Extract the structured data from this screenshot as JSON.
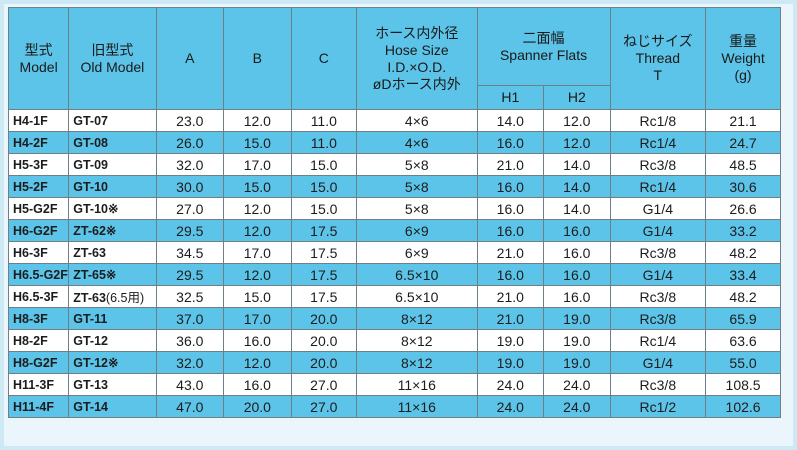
{
  "header": {
    "model": [
      "型式",
      "Model"
    ],
    "old_model": [
      "旧型式",
      "Old Model"
    ],
    "a": "A",
    "b": "B",
    "c": "C",
    "hose": [
      "ホース内外径",
      "Hose Size",
      "I.D.×O.D.",
      "øDホース内外"
    ],
    "spanner": [
      "二面幅",
      "Spanner Flats"
    ],
    "h1": "H1",
    "h2": "H2",
    "thread": [
      "ねじサイズ",
      "Thread",
      "T"
    ],
    "weight": [
      "重量",
      "Weight",
      "(g)"
    ]
  },
  "rows": [
    {
      "model": "H4-1F",
      "old": "GT-07",
      "note": "",
      "a": "23.0",
      "b": "12.0",
      "c": "11.0",
      "hose": "4×6",
      "h1": "14.0",
      "h2": "12.0",
      "thread": "Rc1/8",
      "weight": "21.1"
    },
    {
      "model": "H4-2F",
      "old": "GT-08",
      "note": "",
      "a": "26.0",
      "b": "15.0",
      "c": "11.0",
      "hose": "4×6",
      "h1": "16.0",
      "h2": "12.0",
      "thread": "Rc1/4",
      "weight": "24.7"
    },
    {
      "model": "H5-3F",
      "old": "GT-09",
      "note": "",
      "a": "32.0",
      "b": "17.0",
      "c": "15.0",
      "hose": "5×8",
      "h1": "21.0",
      "h2": "14.0",
      "thread": "Rc3/8",
      "weight": "48.5"
    },
    {
      "model": "H5-2F",
      "old": "GT-10",
      "note": "",
      "a": "30.0",
      "b": "15.0",
      "c": "15.0",
      "hose": "5×8",
      "h1": "16.0",
      "h2": "14.0",
      "thread": "Rc1/4",
      "weight": "30.6"
    },
    {
      "model": "H5-G2F",
      "old": "GT-10※",
      "note": "",
      "a": "27.0",
      "b": "12.0",
      "c": "15.0",
      "hose": "5×8",
      "h1": "16.0",
      "h2": "14.0",
      "thread": "G1/4",
      "weight": "26.6"
    },
    {
      "model": "H6-G2F",
      "old": "ZT-62※",
      "note": "",
      "a": "29.5",
      "b": "12.0",
      "c": "17.5",
      "hose": "6×9",
      "h1": "16.0",
      "h2": "16.0",
      "thread": "G1/4",
      "weight": "33.2"
    },
    {
      "model": "H6-3F",
      "old": "ZT-63",
      "note": "",
      "a": "34.5",
      "b": "17.0",
      "c": "17.5",
      "hose": "6×9",
      "h1": "21.0",
      "h2": "16.0",
      "thread": "Rc3/8",
      "weight": "48.2"
    },
    {
      "model": "H6.5-G2F",
      "old": "ZT-65※",
      "note": "",
      "a": "29.5",
      "b": "12.0",
      "c": "17.5",
      "hose": "6.5×10",
      "h1": "16.0",
      "h2": "16.0",
      "thread": "G1/4",
      "weight": "33.4"
    },
    {
      "model": "H6.5-3F",
      "old": "ZT-63",
      "note": "(6.5用)",
      "a": "32.5",
      "b": "15.0",
      "c": "17.5",
      "hose": "6.5×10",
      "h1": "21.0",
      "h2": "16.0",
      "thread": "Rc3/8",
      "weight": "48.2"
    },
    {
      "model": "H8-3F",
      "old": "GT-11",
      "note": "",
      "a": "37.0",
      "b": "17.0",
      "c": "20.0",
      "hose": "8×12",
      "h1": "21.0",
      "h2": "19.0",
      "thread": "Rc3/8",
      "weight": "65.9"
    },
    {
      "model": "H8-2F",
      "old": "GT-12",
      "note": "",
      "a": "36.0",
      "b": "16.0",
      "c": "20.0",
      "hose": "8×12",
      "h1": "19.0",
      "h2": "19.0",
      "thread": "Rc1/4",
      "weight": "63.6"
    },
    {
      "model": "H8-G2F",
      "old": "GT-12※",
      "note": "",
      "a": "32.0",
      "b": "12.0",
      "c": "20.0",
      "hose": "8×12",
      "h1": "19.0",
      "h2": "19.0",
      "thread": "G1/4",
      "weight": "55.0"
    },
    {
      "model": "H11-3F",
      "old": "GT-13",
      "note": "",
      "a": "43.0",
      "b": "16.0",
      "c": "27.0",
      "hose": "11×16",
      "h1": "24.0",
      "h2": "24.0",
      "thread": "Rc3/8",
      "weight": "108.5"
    },
    {
      "model": "H11-4F",
      "old": "GT-14",
      "note": "",
      "a": "47.0",
      "b": "20.0",
      "c": "27.0",
      "hose": "11×16",
      "h1": "24.0",
      "h2": "24.0",
      "thread": "Rc1/2",
      "weight": "102.6"
    }
  ]
}
